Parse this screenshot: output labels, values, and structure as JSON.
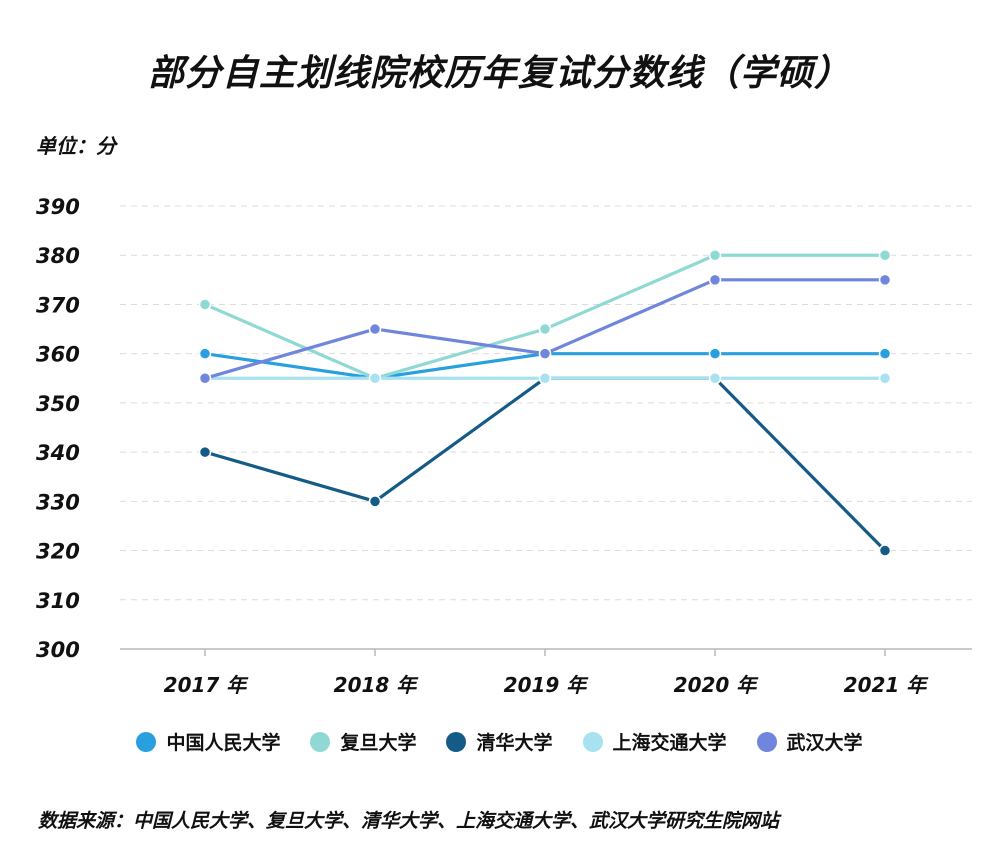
{
  "chart_data": {
    "type": "line",
    "title": "部分自主划线院校历年复试分数线（学硕）",
    "unit_label": "单位：分",
    "categories": [
      "2017 年",
      "2018 年",
      "2019 年",
      "2020 年",
      "2021 年"
    ],
    "ylim": [
      300,
      390
    ],
    "yticks": [
      "300",
      "310",
      "320",
      "330",
      "340",
      "350",
      "360",
      "370",
      "380",
      "390"
    ],
    "grid": true,
    "legend_position": "bottom",
    "series": [
      {
        "name": "中国人民大学",
        "color": "#2a9fdf",
        "values": [
          360,
          355,
          360,
          360,
          360
        ]
      },
      {
        "name": "复旦大学",
        "color": "#8fd9d3",
        "values": [
          370,
          355,
          365,
          380,
          380
        ]
      },
      {
        "name": "清华大学",
        "color": "#145b86",
        "values": [
          340,
          330,
          355,
          355,
          320
        ]
      },
      {
        "name": "上海交通大学",
        "color": "#a8e1ef",
        "values": [
          355,
          355,
          355,
          355,
          355
        ]
      },
      {
        "name": "武汉大学",
        "color": "#6f86dc",
        "values": [
          355,
          365,
          360,
          375,
          375
        ]
      }
    ],
    "source": "数据来源：中国人民大学、复旦大学、清华大学、上海交通大学、武汉大学研究生院网站"
  }
}
